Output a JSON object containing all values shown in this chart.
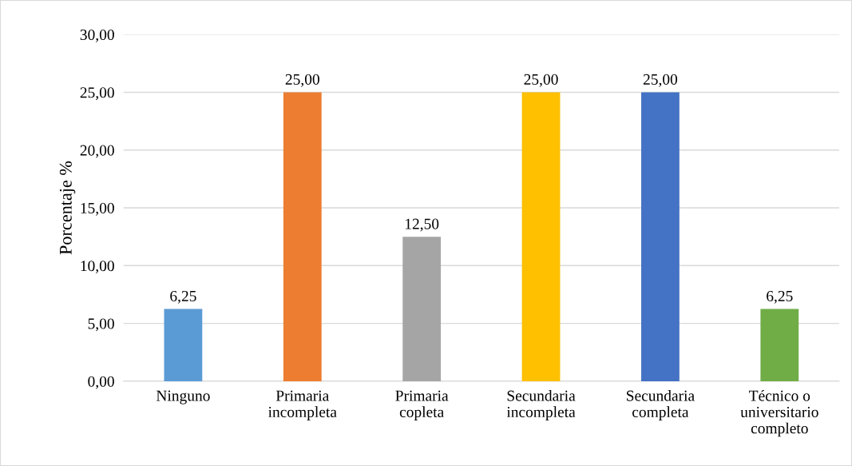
{
  "chart_data": {
    "type": "bar",
    "ylabel": "Porcentaje %",
    "categories": [
      "Ninguno",
      "Primaria\nincompleta",
      "Primaria\ncopleta",
      "Secundaria\nincompleta",
      "Secundaria\ncompleta",
      "Técnico o\nuniversitario\ncompleto"
    ],
    "values": [
      6.25,
      25,
      12.5,
      25,
      25,
      6.25
    ],
    "colors": [
      "#5b9bd5",
      "#ed7d31",
      "#a5a5a5",
      "#ffc000",
      "#4472c4",
      "#70ad47"
    ],
    "value_labels": [
      "6,25",
      "25,00",
      "12,50",
      "25,00",
      "25,00",
      "6,25"
    ],
    "ylim": [
      0,
      30
    ],
    "yticks": [
      {
        "value": 0,
        "label": "0,00"
      },
      {
        "value": 5,
        "label": "5,00"
      },
      {
        "value": 10,
        "label": "10,00"
      },
      {
        "value": 15,
        "label": "15,00"
      },
      {
        "value": 20,
        "label": "20,00"
      },
      {
        "value": 25,
        "label": "25,00"
      },
      {
        "value": 30,
        "label": "30,00"
      }
    ],
    "grid": "y",
    "legend": false
  }
}
